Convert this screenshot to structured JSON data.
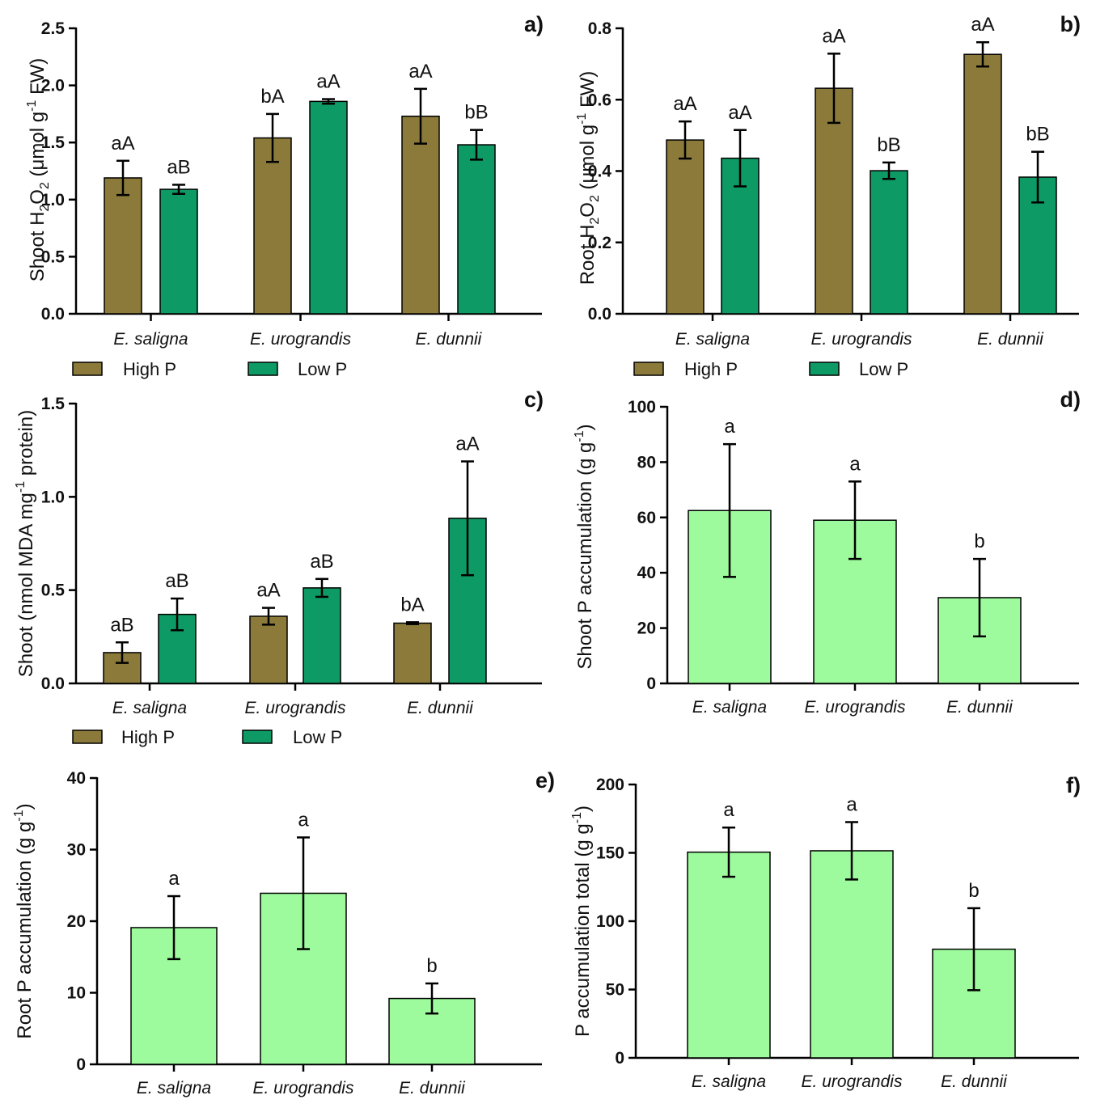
{
  "chart_data": [
    {
      "panel": "a)",
      "type": "bar",
      "ylabel": {
        "pre": "Shoot H",
        "sub1": "2",
        "mid": "O",
        "sub2": "2",
        "post1": " (μmol g",
        "sup": "-1",
        "post2": " FW)"
      },
      "ylim": [
        0,
        2.5
      ],
      "yticks": [
        "0.0",
        "0.5",
        "1.0",
        "1.5",
        "2.0",
        "2.5"
      ],
      "categories": [
        "E. saligna",
        "E. urograndis",
        "E. dunnii"
      ],
      "series": [
        {
          "name": "High P",
          "color": "#8B7A3A",
          "values": [
            1.19,
            1.54,
            1.73
          ],
          "errors": [
            0.15,
            0.21,
            0.24
          ],
          "labels": [
            "aA",
            "bA",
            "aA"
          ]
        },
        {
          "name": "Low P",
          "color": "#0E9A65",
          "values": [
            1.09,
            1.86,
            1.48
          ],
          "errors": [
            0.04,
            0.02,
            0.13
          ],
          "labels": [
            "aB",
            "aA",
            "bB"
          ]
        }
      ],
      "legend": true
    },
    {
      "panel": "b)",
      "type": "bar",
      "ylabel": {
        "pre": "Root H",
        "sub1": "2",
        "mid": "O",
        "sub2": "2",
        "post1": " (μmol g",
        "sup": "-1",
        "post2": " FW)"
      },
      "ylim": [
        0,
        0.8
      ],
      "yticks": [
        "0.0",
        "0.2",
        "0.4",
        "0.6",
        "0.8"
      ],
      "categories": [
        "E. saligna",
        "E. urograndis",
        "E. dunnii"
      ],
      "series": [
        {
          "name": "High P",
          "color": "#8B7A3A",
          "values": [
            0.487,
            0.632,
            0.727
          ],
          "errors": [
            0.052,
            0.097,
            0.034
          ],
          "labels": [
            "aA",
            "aA",
            "aA"
          ]
        },
        {
          "name": "Low P",
          "color": "#0E9A65",
          "values": [
            0.436,
            0.401,
            0.383
          ],
          "errors": [
            0.079,
            0.023,
            0.071
          ],
          "labels": [
            "aA",
            "bB",
            "bB"
          ]
        }
      ],
      "legend": true
    },
    {
      "panel": "c)",
      "type": "bar",
      "ylabel": {
        "pre": "Shoot (nmol MDA mg",
        "sup": "-1",
        "post": " protein)"
      },
      "ylim": [
        0,
        1.5
      ],
      "yticks": [
        "0.0",
        "0.5",
        "1.0",
        "1.5"
      ],
      "categories": [
        "E. saligna",
        "E. urograndis",
        "E. dunnii"
      ],
      "series": [
        {
          "name": "High P",
          "color": "#8B7A3A",
          "values": [
            0.165,
            0.36,
            0.323
          ],
          "errors": [
            0.055,
            0.045,
            0.005
          ],
          "labels": [
            "aB",
            "aA",
            "bA"
          ]
        },
        {
          "name": "Low P",
          "color": "#0E9A65",
          "values": [
            0.37,
            0.512,
            0.885
          ],
          "errors": [
            0.085,
            0.048,
            0.305
          ],
          "labels": [
            "aB",
            "aB",
            "aA"
          ]
        }
      ],
      "legend": true
    },
    {
      "panel": "d)",
      "type": "bar",
      "ylabel": {
        "pre": "Shoot P accumulation (g g",
        "sup": "-1",
        "post": ")"
      },
      "ylim": [
        0,
        100
      ],
      "yticks": [
        "0",
        "20",
        "40",
        "60",
        "80",
        "100"
      ],
      "categories": [
        "E. saligna",
        "E. urograndis",
        "E. dunnii"
      ],
      "series": [
        {
          "color": "#9DFB9D",
          "values": [
            62.5,
            59,
            31
          ],
          "errors": [
            24,
            14,
            14
          ],
          "labels": [
            "a",
            "a",
            "b"
          ]
        }
      ],
      "legend": false
    },
    {
      "panel": "e)",
      "type": "bar",
      "ylabel": {
        "pre": "Root P accumulation (g g",
        "sup": "-1",
        "post": ")"
      },
      "ylim": [
        0,
        40
      ],
      "yticks": [
        "0",
        "10",
        "20",
        "30",
        "40"
      ],
      "categories": [
        "E. saligna",
        "E. urograndis",
        "E. dunnii"
      ],
      "series": [
        {
          "color": "#9DFB9D",
          "values": [
            19.1,
            23.9,
            9.2
          ],
          "errors": [
            4.4,
            7.8,
            2.1
          ],
          "labels": [
            "a",
            "a",
            "b"
          ]
        }
      ],
      "legend": false
    },
    {
      "panel": "f)",
      "type": "bar",
      "ylabel": {
        "pre": "P accumulation total (g g",
        "sup": "-1",
        "post": ")"
      },
      "ylim": [
        0,
        200
      ],
      "yticks": [
        "0",
        "50",
        "100",
        "150",
        "200"
      ],
      "categories": [
        "E. saligna",
        "E. urograndis",
        "E. dunnii"
      ],
      "series": [
        {
          "color": "#9DFB9D",
          "values": [
            150.5,
            151.5,
            79.5
          ],
          "errors": [
            18,
            21,
            30
          ],
          "labels": [
            "a",
            "a",
            "b"
          ]
        }
      ],
      "legend": false
    }
  ]
}
